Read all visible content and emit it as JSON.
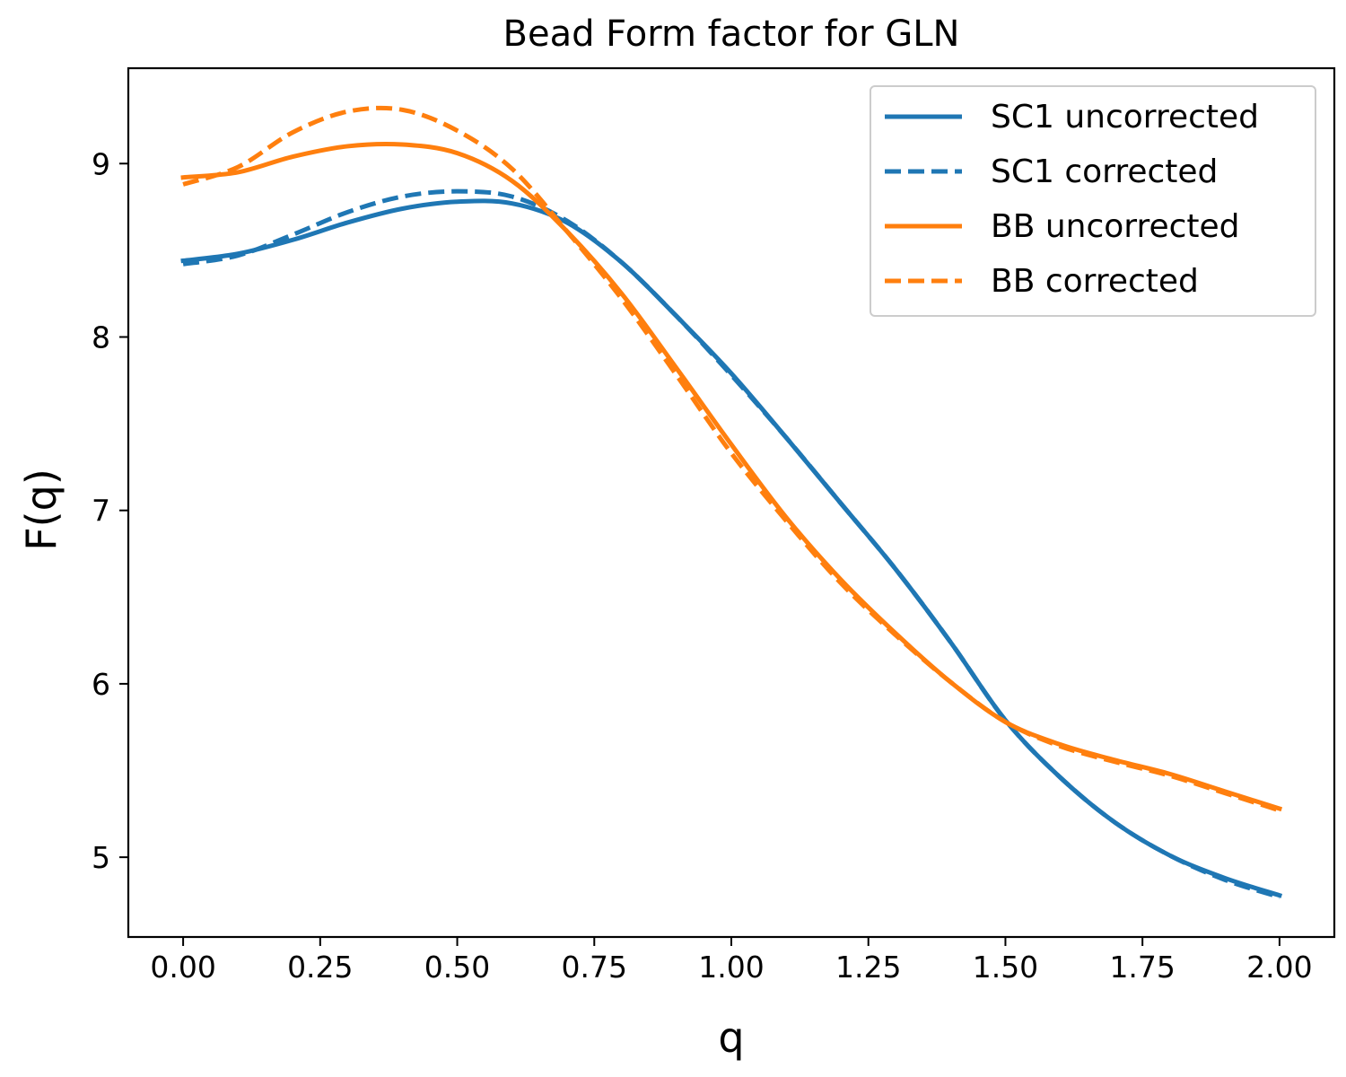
{
  "chart_data": {
    "type": "line",
    "title": "Bead Form factor for GLN",
    "xlabel": "q",
    "ylabel": "F(q)",
    "xlim": [
      -0.1,
      2.1
    ],
    "ylim": [
      4.54,
      9.55
    ],
    "xticks": [
      0.0,
      0.25,
      0.5,
      0.75,
      1.0,
      1.25,
      1.5,
      1.75,
      2.0
    ],
    "xtick_labels": [
      "0.00",
      "0.25",
      "0.50",
      "0.75",
      "1.00",
      "1.25",
      "1.50",
      "1.75",
      "2.00"
    ],
    "yticks": [
      5,
      6,
      7,
      8,
      9
    ],
    "ytick_labels": [
      "5",
      "6",
      "7",
      "8",
      "9"
    ],
    "grid": false,
    "legend_position": "top-right",
    "x": [
      0.0,
      0.1,
      0.2,
      0.3,
      0.4,
      0.5,
      0.6,
      0.7,
      0.8,
      0.9,
      1.0,
      1.1,
      1.2,
      1.3,
      1.4,
      1.5,
      1.6,
      1.7,
      1.8,
      1.9,
      2.0
    ],
    "series": [
      {
        "name": "SC1 uncorrected",
        "color": "#1f77b4",
        "dash": "solid",
        "values": [
          8.44,
          8.48,
          8.56,
          8.66,
          8.74,
          8.78,
          8.77,
          8.66,
          8.43,
          8.12,
          7.79,
          7.42,
          7.04,
          6.66,
          6.24,
          5.79,
          5.46,
          5.2,
          5.01,
          4.88,
          4.78
        ]
      },
      {
        "name": "SC1 corrected",
        "color": "#1f77b4",
        "dash": "dashed",
        "values": [
          8.42,
          8.47,
          8.59,
          8.72,
          8.81,
          8.84,
          8.81,
          8.67,
          8.43,
          8.12,
          7.78,
          7.42,
          7.04,
          6.66,
          6.24,
          5.79,
          5.46,
          5.2,
          5.01,
          4.87,
          4.77
        ]
      },
      {
        "name": "BB uncorrected",
        "color": "#ff7f0e",
        "dash": "solid",
        "values": [
          8.92,
          8.95,
          9.04,
          9.1,
          9.11,
          9.06,
          8.9,
          8.61,
          8.25,
          7.82,
          7.38,
          6.96,
          6.6,
          6.29,
          6.01,
          5.78,
          5.65,
          5.56,
          5.48,
          5.38,
          5.28
        ]
      },
      {
        "name": "BB corrected",
        "color": "#ff7f0e",
        "dash": "dashed",
        "values": [
          8.88,
          8.98,
          9.18,
          9.3,
          9.31,
          9.19,
          8.97,
          8.61,
          8.22,
          7.78,
          7.33,
          6.94,
          6.58,
          6.28,
          6.01,
          5.78,
          5.64,
          5.55,
          5.47,
          5.37,
          5.27
        ]
      }
    ]
  }
}
